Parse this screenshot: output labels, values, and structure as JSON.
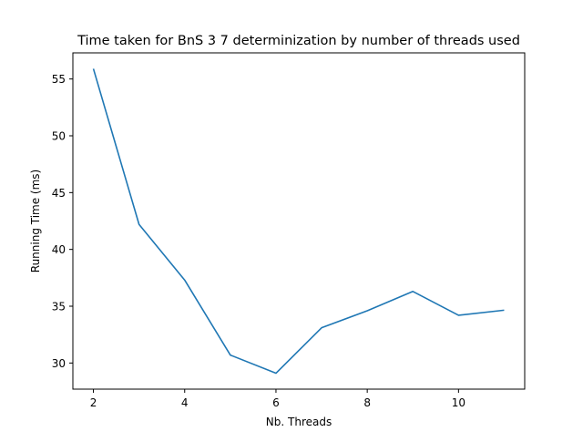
{
  "chart_data": {
    "type": "line",
    "title": "Time taken for BnS 3 7 determinization by number of threads used",
    "xlabel": "Nb. Threads",
    "ylabel": "Running Time (ms)",
    "x": [
      2,
      3,
      4,
      5,
      6,
      7,
      8,
      9,
      10,
      11
    ],
    "series": [
      {
        "values": [
          55.9,
          42.2,
          37.3,
          30.7,
          29.1,
          33.1,
          34.6,
          36.3,
          34.2,
          34.65
        ],
        "color": "#1f77b4"
      }
    ],
    "xlim": [
      1.55,
      11.45
    ],
    "ylim": [
      27.7,
      57.3
    ],
    "xticks": [
      {
        "value": 2,
        "label": "2"
      },
      {
        "value": 4,
        "label": "4"
      },
      {
        "value": 6,
        "label": "6"
      },
      {
        "value": 8,
        "label": "8"
      },
      {
        "value": 10,
        "label": "10"
      }
    ],
    "yticks": [
      {
        "value": 30,
        "label": "30"
      },
      {
        "value": 35,
        "label": "35"
      },
      {
        "value": 40,
        "label": "40"
      },
      {
        "value": 45,
        "label": "45"
      },
      {
        "value": 50,
        "label": "50"
      },
      {
        "value": 55,
        "label": "55"
      }
    ],
    "grid": false,
    "legend": "none"
  }
}
